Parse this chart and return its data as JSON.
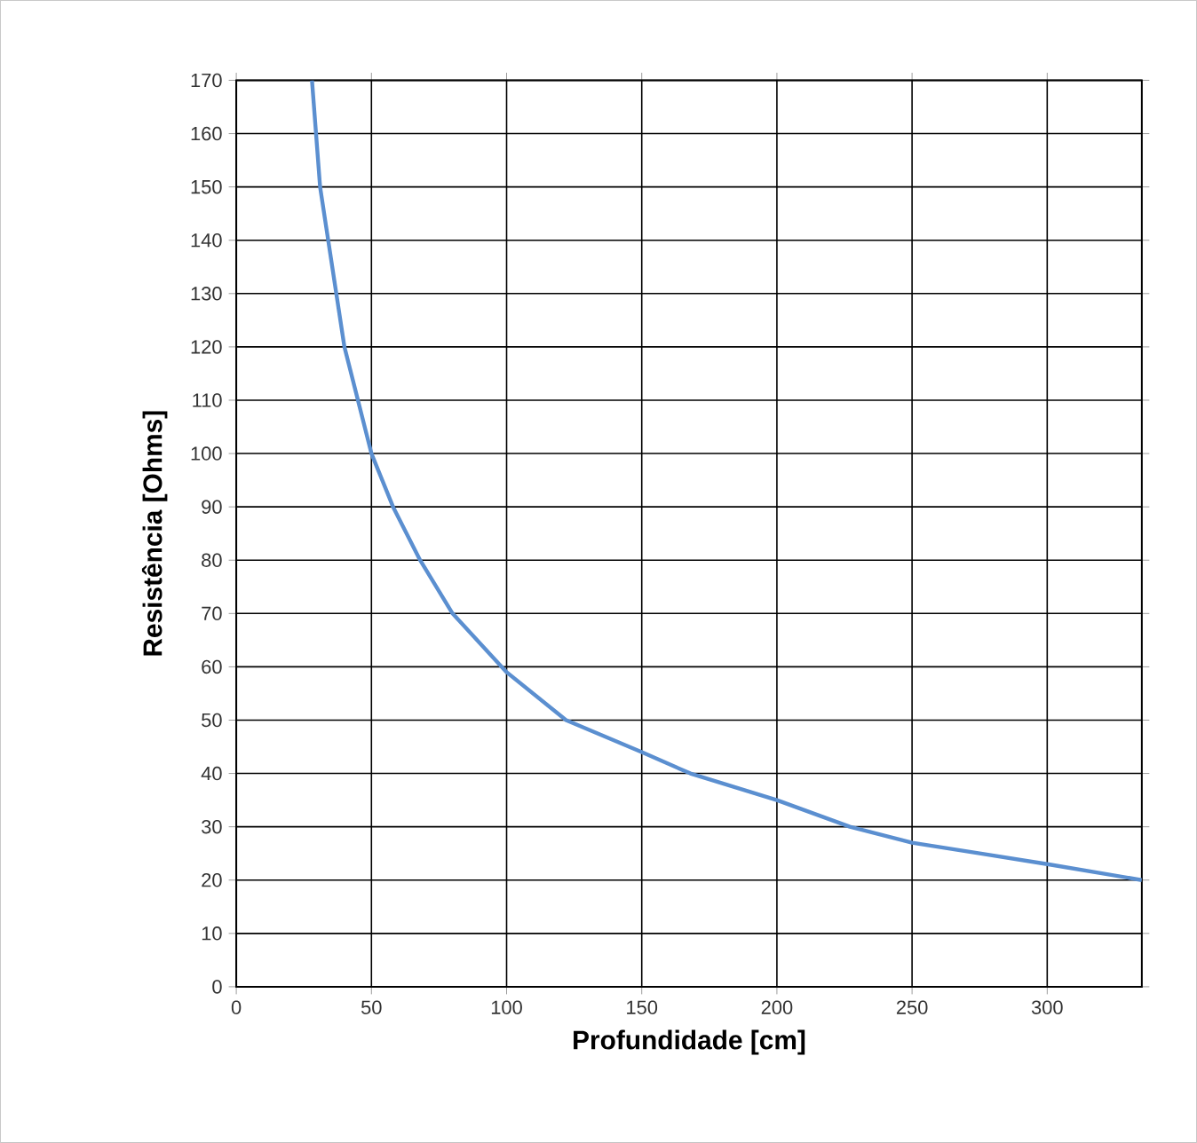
{
  "chart_data": {
    "type": "line",
    "xlabel": "Profundidade [cm]",
    "ylabel": "Resistência [Ohms]",
    "series": [
      {
        "color": "#5b8fd0",
        "x": [
          28,
          31,
          40,
          50,
          58,
          68,
          80,
          100,
          122,
          150,
          168,
          200,
          227,
          250,
          275,
          300,
          335
        ],
        "values": [
          170,
          150,
          120,
          100,
          90,
          80,
          70,
          59,
          50,
          44,
          40,
          35,
          30,
          27,
          25,
          23,
          20
        ]
      }
    ],
    "xlim": [
      0,
      335
    ],
    "ylim": [
      0,
      170
    ],
    "xticks": [
      0,
      50,
      100,
      150,
      200,
      250,
      300
    ],
    "yticks": [
      0,
      10,
      20,
      30,
      40,
      50,
      60,
      70,
      80,
      90,
      100,
      110,
      120,
      130,
      140,
      150,
      160,
      170
    ],
    "grid": true,
    "marker": "none",
    "line_style": "solid",
    "legend": false
  }
}
